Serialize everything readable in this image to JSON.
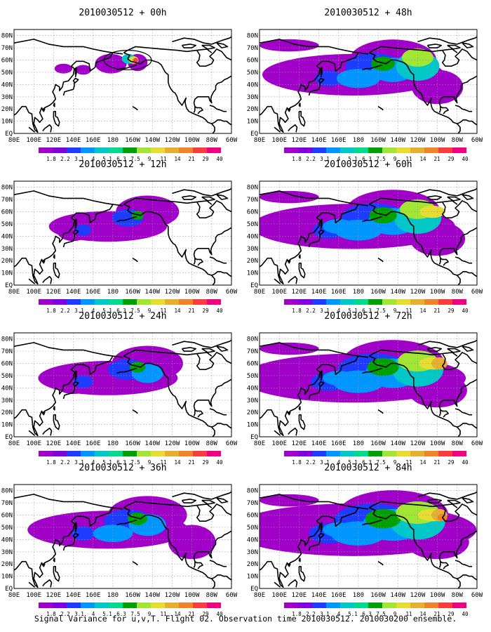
{
  "caption": "Signal Variance for u,v,T. Flight 02. Observation time 2010030512. 2010030200 ensemble.",
  "lat_labels": [
    "80N",
    "70N",
    "60N",
    "50N",
    "40N",
    "30N",
    "20N",
    "10N",
    "EQ"
  ],
  "lon_labels": [
    "80E",
    "100E",
    "120E",
    "140E",
    "160E",
    "180",
    "160W",
    "140W",
    "120W",
    "100W",
    "80W",
    "60W"
  ],
  "colorbar": {
    "labels": [
      "1.8",
      "2.2",
      "3.1",
      "4",
      "5.1",
      "6.3",
      "7.5",
      "9",
      "11",
      "14",
      "21",
      "29",
      "40"
    ],
    "colors": [
      "#a000c8",
      "#8200dc",
      "#1e3cff",
      "#0096ff",
      "#00c8c8",
      "#00dc8c",
      "#00a000",
      "#a0e632",
      "#e6dc32",
      "#e6af2d",
      "#f08228",
      "#fa3c3c",
      "#f00082"
    ]
  },
  "panels": [
    {
      "title": "2010030512 + 00h",
      "level": 0
    },
    {
      "title": "2010030512 + 48h",
      "level": 4
    },
    {
      "title": "2010030512 + 12h",
      "level": 1
    },
    {
      "title": "2010030512 + 60h",
      "level": 5
    },
    {
      "title": "2010030512 + 24h",
      "level": 2
    },
    {
      "title": "2010030512 + 72h",
      "level": 6
    },
    {
      "title": "2010030512 + 36h",
      "level": 3
    },
    {
      "title": "2010030512 + 84h",
      "level": 7
    }
  ]
}
